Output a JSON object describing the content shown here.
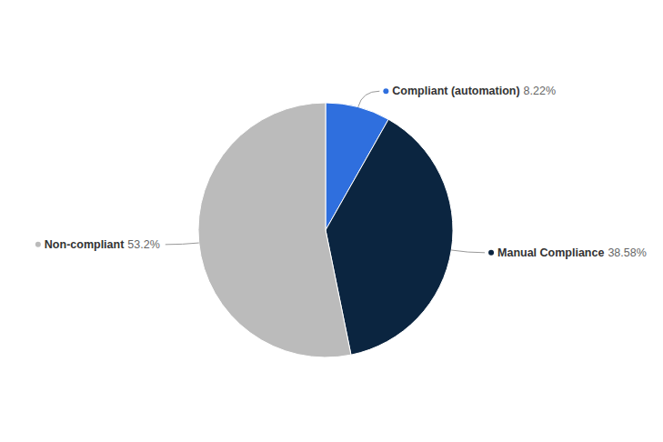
{
  "chart_data": {
    "type": "pie",
    "categories": [
      "Compliant (automation)",
      "Manual Compliance",
      "Non-compliant"
    ],
    "values": [
      8.22,
      38.58,
      53.2
    ],
    "value_labels": [
      "8.22%",
      "38.58%",
      "53.2%"
    ],
    "colors": [
      "#2f6fde",
      "#0b2540",
      "#bbbbbb"
    ],
    "data_labels": true
  }
}
